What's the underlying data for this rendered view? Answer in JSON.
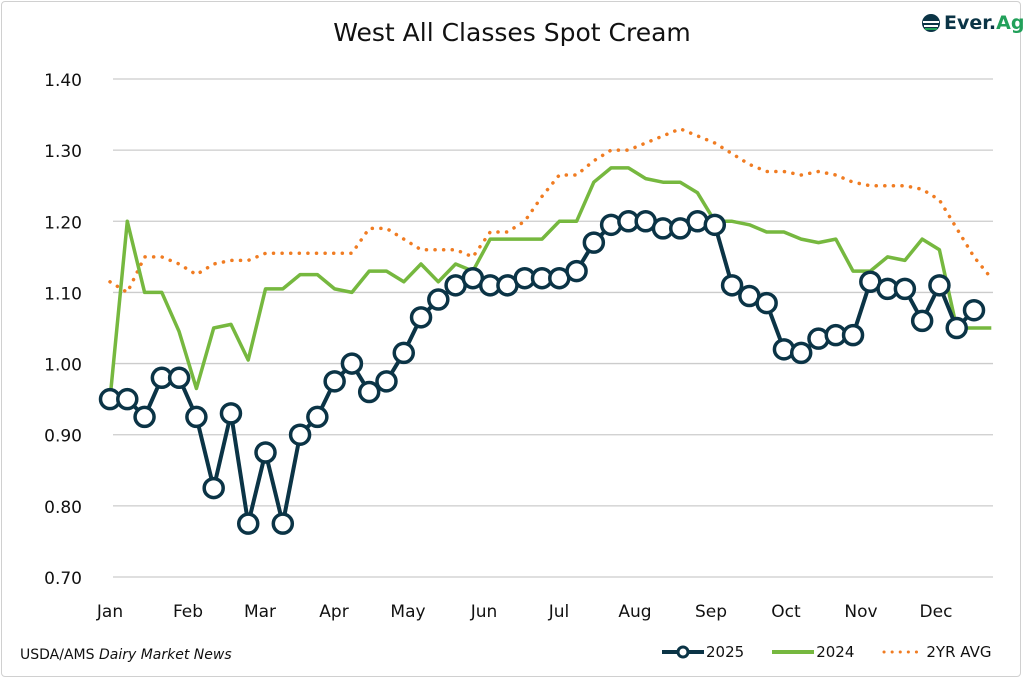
{
  "chart_data": {
    "type": "line",
    "title": "West All Classes Spot Cream",
    "xlabel": "",
    "ylabel": "",
    "ylim": [
      0.7,
      1.4
    ],
    "yticks": [
      "0.70",
      "0.80",
      "0.90",
      "1.00",
      "1.10",
      "1.20",
      "1.30",
      "1.40"
    ],
    "ytick_values": [
      0.7,
      0.8,
      0.9,
      1.0,
      1.1,
      1.2,
      1.3,
      1.4
    ],
    "xtick_labels": [
      "Jan",
      "Feb",
      "Mar",
      "Apr",
      "May",
      "Jun",
      "Jul",
      "Aug",
      "Sep",
      "Oct",
      "Nov",
      "Dec"
    ],
    "x_unit": "week",
    "grid": "horizontal",
    "legend_position": "bottom-right",
    "series": [
      {
        "name": "2025",
        "color": "#0b3446",
        "style": "solid-circle-markers",
        "values": [
          0.95,
          0.95,
          0.925,
          0.98,
          0.98,
          0.925,
          0.825,
          0.93,
          0.775,
          0.875,
          0.775,
          0.9,
          0.925,
          0.975,
          1.0,
          0.96,
          0.975,
          1.015,
          1.065,
          1.09,
          1.11,
          1.12,
          1.11,
          1.11,
          1.12,
          1.12,
          1.12,
          1.13,
          1.17,
          1.195,
          1.2,
          1.2,
          1.19,
          1.19,
          1.2,
          1.195,
          1.11,
          1.095,
          1.085,
          1.02,
          1.015,
          1.035,
          1.04,
          1.04,
          1.115,
          1.105,
          1.105,
          1.06,
          1.11,
          1.05,
          1.075
        ]
      },
      {
        "name": "2024",
        "color": "#76b83f",
        "style": "solid",
        "values": [
          0.95,
          1.2,
          1.1,
          1.1,
          1.045,
          0.965,
          1.05,
          1.055,
          1.005,
          1.105,
          1.105,
          1.125,
          1.125,
          1.105,
          1.1,
          1.13,
          1.13,
          1.115,
          1.14,
          1.115,
          1.14,
          1.13,
          1.175,
          1.175,
          1.175,
          1.175,
          1.2,
          1.2,
          1.255,
          1.275,
          1.275,
          1.26,
          1.255,
          1.255,
          1.24,
          1.2,
          1.2,
          1.195,
          1.185,
          1.185,
          1.175,
          1.17,
          1.175,
          1.13,
          1.13,
          1.15,
          1.145,
          1.175,
          1.16,
          1.05,
          1.05,
          1.05
        ]
      },
      {
        "name": "2YR AVG",
        "color": "#f07c22",
        "style": "dotted",
        "values": [
          1.115,
          1.1,
          1.15,
          1.15,
          1.14,
          1.125,
          1.14,
          1.145,
          1.145,
          1.155,
          1.155,
          1.155,
          1.155,
          1.155,
          1.155,
          1.19,
          1.19,
          1.175,
          1.16,
          1.16,
          1.16,
          1.15,
          1.185,
          1.185,
          1.2,
          1.235,
          1.265,
          1.265,
          1.285,
          1.3,
          1.3,
          1.31,
          1.32,
          1.33,
          1.32,
          1.31,
          1.295,
          1.28,
          1.27,
          1.27,
          1.265,
          1.27,
          1.265,
          1.255,
          1.25,
          1.25,
          1.25,
          1.245,
          1.23,
          1.19,
          1.15,
          1.12
        ]
      }
    ]
  },
  "source": {
    "prefix": "USDA/AMS ",
    "italic": "Dairy Market News"
  },
  "logo": {
    "text_a": "Ever.",
    "text_b": "Ag"
  }
}
